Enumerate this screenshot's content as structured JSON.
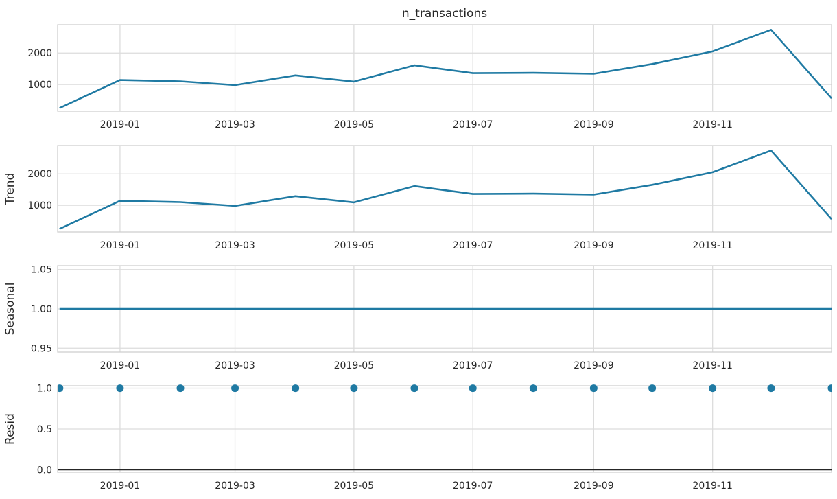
{
  "chart_data": [
    {
      "type": "line",
      "title": "n_transactions",
      "ylabel": "",
      "x": [
        "2018-12-01",
        "2019-01-01",
        "2019-02-01",
        "2019-03-01",
        "2019-04-01",
        "2019-05-01",
        "2019-06-01",
        "2019-07-01",
        "2019-08-01",
        "2019-09-01",
        "2019-10-01",
        "2019-11-01",
        "2019-12-01",
        "2020-01-01"
      ],
      "values": [
        250,
        1140,
        1100,
        980,
        1290,
        1090,
        1610,
        1360,
        1370,
        1340,
        1650,
        2050,
        2740,
        560
      ],
      "ylim": [
        150,
        2900
      ],
      "yticks": [
        1000,
        2000
      ],
      "ytick_labels": [
        "1000",
        "2000"
      ],
      "xticks": [
        "2019-01-01",
        "2019-03-01",
        "2019-05-01",
        "2019-07-01",
        "2019-09-01",
        "2019-11-01"
      ],
      "xtick_labels": [
        "2019-01",
        "2019-03",
        "2019-05",
        "2019-07",
        "2019-09",
        "2019-11"
      ],
      "grid": true,
      "color": "#1f7aa3"
    },
    {
      "type": "line",
      "title": "",
      "ylabel": "Trend",
      "x": [
        "2018-12-01",
        "2019-01-01",
        "2019-02-01",
        "2019-03-01",
        "2019-04-01",
        "2019-05-01",
        "2019-06-01",
        "2019-07-01",
        "2019-08-01",
        "2019-09-01",
        "2019-10-01",
        "2019-11-01",
        "2019-12-01",
        "2020-01-01"
      ],
      "values": [
        250,
        1140,
        1100,
        980,
        1290,
        1090,
        1610,
        1360,
        1370,
        1340,
        1650,
        2050,
        2740,
        560
      ],
      "ylim": [
        150,
        2900
      ],
      "yticks": [
        1000,
        2000
      ],
      "ytick_labels": [
        "1000",
        "2000"
      ],
      "xticks": [
        "2019-01-01",
        "2019-03-01",
        "2019-05-01",
        "2019-07-01",
        "2019-09-01",
        "2019-11-01"
      ],
      "xtick_labels": [
        "2019-01",
        "2019-03",
        "2019-05",
        "2019-07",
        "2019-09",
        "2019-11"
      ],
      "grid": true,
      "color": "#1f7aa3"
    },
    {
      "type": "line",
      "title": "",
      "ylabel": "Seasonal",
      "x": [
        "2018-12-01",
        "2019-01-01",
        "2019-02-01",
        "2019-03-01",
        "2019-04-01",
        "2019-05-01",
        "2019-06-01",
        "2019-07-01",
        "2019-08-01",
        "2019-09-01",
        "2019-10-01",
        "2019-11-01",
        "2019-12-01",
        "2020-01-01"
      ],
      "values": [
        1.0,
        1.0,
        1.0,
        1.0,
        1.0,
        1.0,
        1.0,
        1.0,
        1.0,
        1.0,
        1.0,
        1.0,
        1.0,
        1.0
      ],
      "ylim": [
        0.945,
        1.055
      ],
      "yticks": [
        0.95,
        1.0,
        1.05
      ],
      "ytick_labels": [
        "0.95",
        "1.00",
        "1.05"
      ],
      "xticks": [
        "2019-01-01",
        "2019-03-01",
        "2019-05-01",
        "2019-07-01",
        "2019-09-01",
        "2019-11-01"
      ],
      "xtick_labels": [
        "2019-01",
        "2019-03",
        "2019-05",
        "2019-07",
        "2019-09",
        "2019-11"
      ],
      "grid": true,
      "color": "#1f7aa3"
    },
    {
      "type": "scatter",
      "title": "",
      "ylabel": "Resid",
      "x": [
        "2018-12-01",
        "2019-01-01",
        "2019-02-01",
        "2019-03-01",
        "2019-04-01",
        "2019-05-01",
        "2019-06-01",
        "2019-07-01",
        "2019-08-01",
        "2019-09-01",
        "2019-10-01",
        "2019-11-01",
        "2019-12-01",
        "2020-01-01"
      ],
      "values": [
        1.0,
        1.0,
        1.0,
        1.0,
        1.0,
        1.0,
        1.0,
        1.0,
        1.0,
        1.0,
        1.0,
        1.0,
        1.0,
        1.0
      ],
      "baseline": 0.0,
      "ylim": [
        -0.03,
        1.03
      ],
      "yticks": [
        0.0,
        0.5,
        1.0
      ],
      "ytick_labels": [
        "0.0",
        "0.5",
        "1.0"
      ],
      "xticks": [
        "2019-01-01",
        "2019-03-01",
        "2019-05-01",
        "2019-07-01",
        "2019-09-01",
        "2019-11-01"
      ],
      "xtick_labels": [
        "2019-01",
        "2019-03",
        "2019-05",
        "2019-07",
        "2019-09",
        "2019-11"
      ],
      "grid": true,
      "color": "#1f7aa3",
      "baseline_color": "#262626"
    }
  ]
}
